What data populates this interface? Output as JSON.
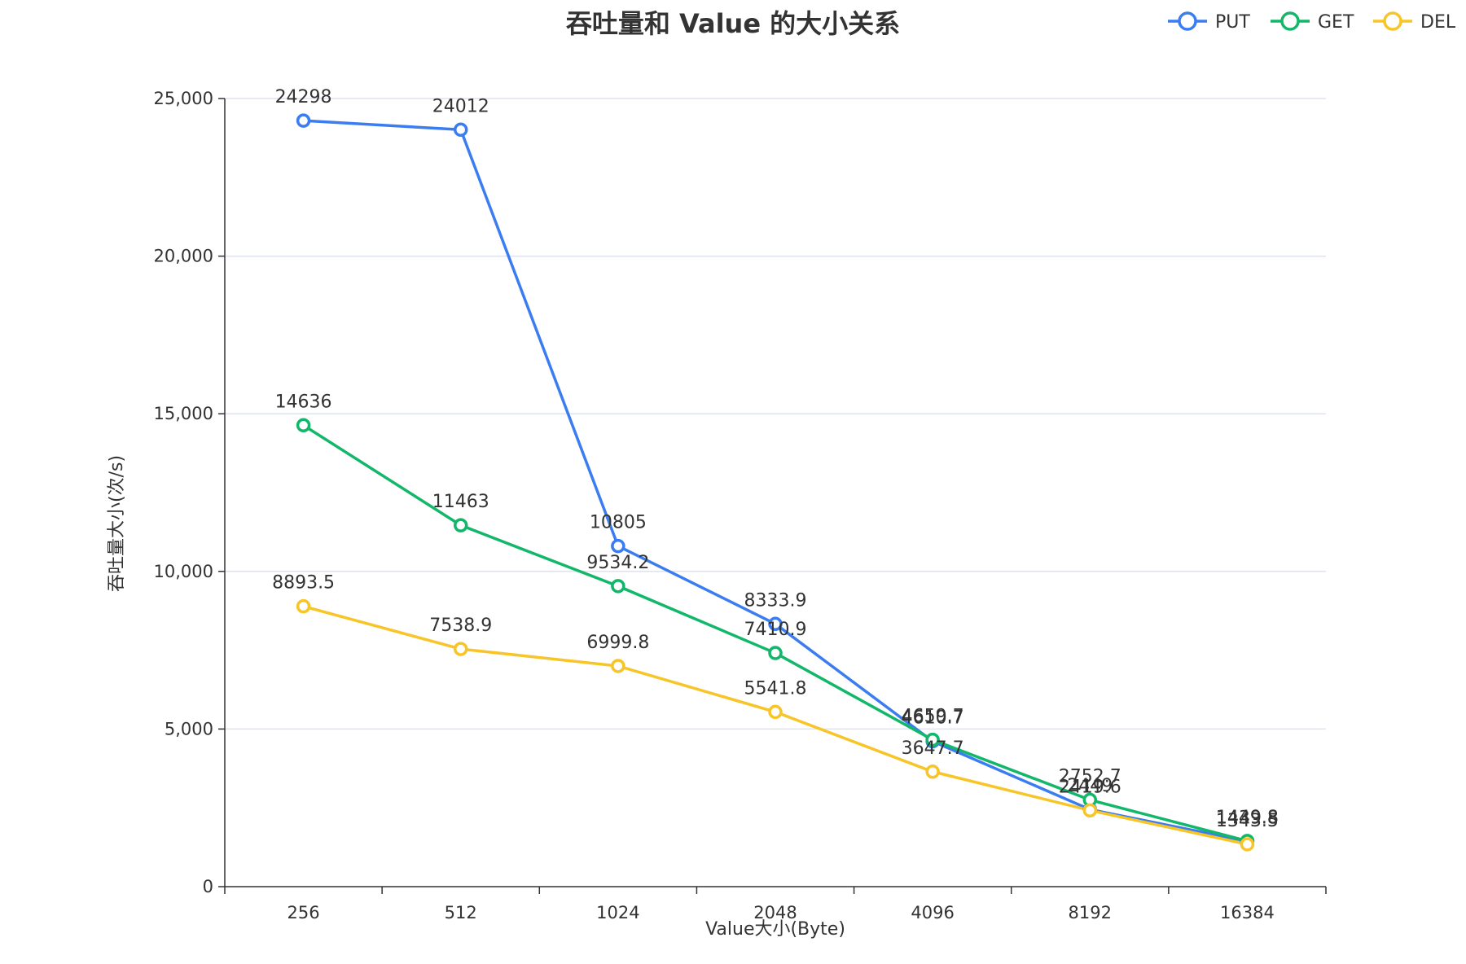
{
  "chart_data": {
    "type": "line",
    "title": "吞吐量和 Value 的大小关系",
    "xlabel": "Value大小(Byte)",
    "ylabel": "吞吐量大小(次/s)",
    "categories": [
      "256",
      "512",
      "1024",
      "2048",
      "4096",
      "8192",
      "16384"
    ],
    "ylim": [
      0,
      25000
    ],
    "yticks": [
      0,
      5000,
      10000,
      15000,
      20000,
      25000
    ],
    "ytick_labels": [
      "0",
      "5,000",
      "10,000",
      "15,000",
      "20,000",
      "25,000"
    ],
    "grid": true,
    "legend_position": "top-right",
    "series": [
      {
        "name": "PUT",
        "color": "#3b7df0",
        "values": [
          24298,
          24012,
          10805,
          8333.9,
          4610.7,
          2449,
          1439.8
        ],
        "labels": [
          "24298",
          "24012",
          "10805",
          "8333.9",
          "4610.7",
          "2449",
          "1439.8"
        ]
      },
      {
        "name": "GET",
        "color": "#12b76a",
        "values": [
          14636,
          11463,
          9534.2,
          7410.9,
          4659.7,
          2752.7,
          1449.8
        ],
        "labels": [
          "14636",
          "11463",
          "9534.2",
          "7410.9",
          "4659.7",
          "2752.7",
          "1449.8"
        ]
      },
      {
        "name": "DEL",
        "color": "#f7c527",
        "values": [
          8893.5,
          7538.9,
          6999.8,
          5541.8,
          3647.7,
          2419.6,
          1343.5
        ],
        "labels": [
          "8893.5",
          "7538.9",
          "6999.8",
          "5541.8",
          "3647.7",
          "2419.6",
          "1343.5"
        ]
      }
    ]
  }
}
